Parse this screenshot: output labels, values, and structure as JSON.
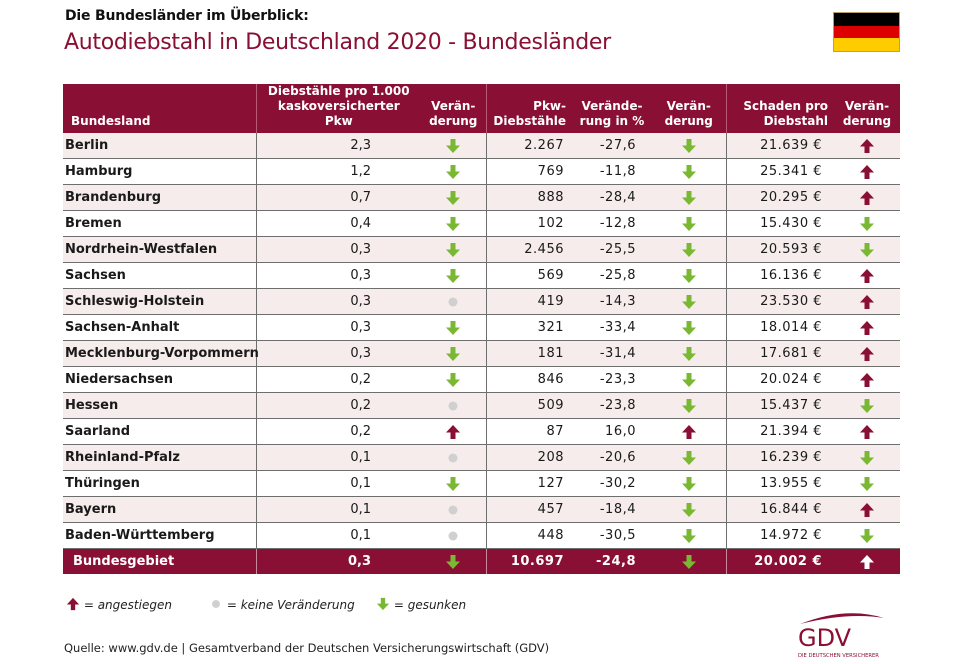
{
  "header": {
    "kicker": "Die Bundesländer im Überblick:",
    "title": "Autodiebstahl in Deutschland 2020 - Bundesländer",
    "flag_icon": "germany-flag-icon",
    "flag_colors": [
      "#000000",
      "#dd0000",
      "#ffcc00"
    ]
  },
  "colors": {
    "brand": "#8a0f35",
    "up": "#8a0f35",
    "down": "#7ab834",
    "neutral": "#d0d0d0",
    "row_alt": "#f6ecec"
  },
  "table": {
    "columns": [
      "Bundesland",
      "Diebstähle pro 1.000 kaskoversicherter Pkw",
      "Verän-derung",
      "Pkw-Diebstähle",
      "Verände-rung in %",
      "Verän-derung",
      "Schaden pro Diebstahl",
      "Verän-derung"
    ],
    "column_lines": [
      [
        "Bundesland"
      ],
      [
        "Diebstähle pro 1.000",
        "kaskoversicherter Pkw"
      ],
      [
        "Verän-",
        "derung"
      ],
      [
        "Pkw-",
        "Diebstähle"
      ],
      [
        "Verände-",
        "rung in %"
      ],
      [
        "Verän-",
        "derung"
      ],
      [
        "Schaden pro",
        "Diebstahl"
      ],
      [
        "Verän-",
        "derung"
      ]
    ],
    "rows": [
      {
        "name": "Berlin",
        "per1000": "2,3",
        "trend1": "down",
        "thefts": "2.267",
        "change_pct": "-27,6",
        "trend2": "down",
        "damage": "21.639 €",
        "trend3": "up"
      },
      {
        "name": "Hamburg",
        "per1000": "1,2",
        "trend1": "down",
        "thefts": "769",
        "change_pct": "-11,8",
        "trend2": "down",
        "damage": "25.341 €",
        "trend3": "up"
      },
      {
        "name": "Brandenburg",
        "per1000": "0,7",
        "trend1": "down",
        "thefts": "888",
        "change_pct": "-28,4",
        "trend2": "down",
        "damage": "20.295 €",
        "trend3": "up"
      },
      {
        "name": "Bremen",
        "per1000": "0,4",
        "trend1": "down",
        "thefts": "102",
        "change_pct": "-12,8",
        "trend2": "down",
        "damage": "15.430 €",
        "trend3": "down"
      },
      {
        "name": "Nordrhein-Westfalen",
        "per1000": "0,3",
        "trend1": "down",
        "thefts": "2.456",
        "change_pct": "-25,5",
        "trend2": "down",
        "damage": "20.593 €",
        "trend3": "down"
      },
      {
        "name": "Sachsen",
        "per1000": "0,3",
        "trend1": "down",
        "thefts": "569",
        "change_pct": "-25,8",
        "trend2": "down",
        "damage": "16.136 €",
        "trend3": "up"
      },
      {
        "name": "Schleswig-Holstein",
        "per1000": "0,3",
        "trend1": "neutral",
        "thefts": "419",
        "change_pct": "-14,3",
        "trend2": "down",
        "damage": "23.530 €",
        "trend3": "up"
      },
      {
        "name": "Sachsen-Anhalt",
        "per1000": "0,3",
        "trend1": "down",
        "thefts": "321",
        "change_pct": "-33,4",
        "trend2": "down",
        "damage": "18.014 €",
        "trend3": "up"
      },
      {
        "name": "Mecklenburg-Vorpommern",
        "per1000": "0,3",
        "trend1": "down",
        "thefts": "181",
        "change_pct": "-31,4",
        "trend2": "down",
        "damage": "17.681 €",
        "trend3": "up"
      },
      {
        "name": "Niedersachsen",
        "per1000": "0,2",
        "trend1": "down",
        "thefts": "846",
        "change_pct": "-23,3",
        "trend2": "down",
        "damage": "20.024 €",
        "trend3": "up"
      },
      {
        "name": "Hessen",
        "per1000": "0,2",
        "trend1": "neutral",
        "thefts": "509",
        "change_pct": "-23,8",
        "trend2": "down",
        "damage": "15.437 €",
        "trend3": "down"
      },
      {
        "name": "Saarland",
        "per1000": "0,2",
        "trend1": "up",
        "thefts": "87",
        "change_pct": "16,0",
        "trend2": "up",
        "damage": "21.394 €",
        "trend3": "up"
      },
      {
        "name": "Rheinland-Pfalz",
        "per1000": "0,1",
        "trend1": "neutral",
        "thefts": "208",
        "change_pct": "-20,6",
        "trend2": "down",
        "damage": "16.239 €",
        "trend3": "down"
      },
      {
        "name": "Thüringen",
        "per1000": "0,1",
        "trend1": "down",
        "thefts": "127",
        "change_pct": "-30,2",
        "trend2": "down",
        "damage": "13.955 €",
        "trend3": "down"
      },
      {
        "name": "Bayern",
        "per1000": "0,1",
        "trend1": "neutral",
        "thefts": "457",
        "change_pct": "-18,4",
        "trend2": "down",
        "damage": "16.844 €",
        "trend3": "up"
      },
      {
        "name": "Baden-Württemberg",
        "per1000": "0,1",
        "trend1": "neutral",
        "thefts": "448",
        "change_pct": "-30,5",
        "trend2": "down",
        "damage": "14.972 €",
        "trend3": "down"
      }
    ],
    "total": {
      "name": "Bundesgebiet",
      "per1000": "0,3",
      "trend1": "down",
      "thefts": "10.697",
      "change_pct": "-24,8",
      "trend2": "down",
      "damage": "20.002 €",
      "trend3": "up-white"
    }
  },
  "legend": {
    "up": "= angestiegen",
    "neutral": "= keine Veränderung",
    "down": "= gesunken"
  },
  "footer": {
    "source": "Quelle: www.gdv.de | Gesamtverband der Deutschen Versicherungswirtschaft (GDV)",
    "logo_text": "GDV",
    "logo_subtext": "DIE DEUTSCHEN VERSICHERER"
  }
}
